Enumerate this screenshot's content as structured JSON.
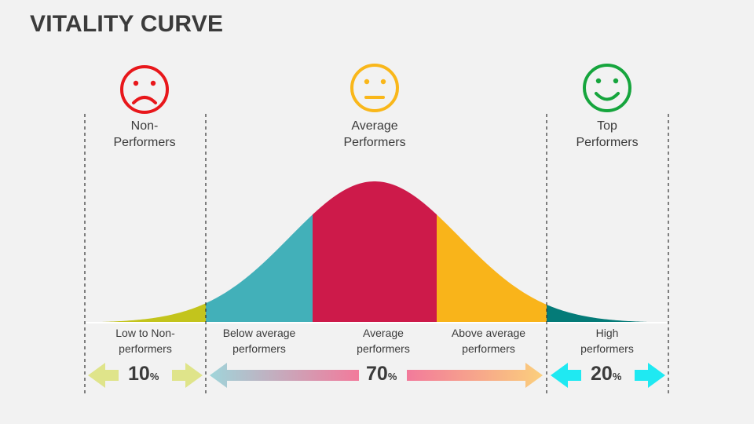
{
  "title": "VITALITY CURVE",
  "groups": [
    {
      "label": "Non-\nPerformers",
      "face": "sad-face-icon",
      "color": "#e8171b"
    },
    {
      "label": "Average\nPerformers",
      "face": "neutral-face-icon",
      "color": "#f9b71a"
    },
    {
      "label": "Top\nPerformers",
      "face": "happy-face-icon",
      "color": "#16a53d"
    }
  ],
  "segments": [
    {
      "label": "Low to Non-\nperformers",
      "color": "#c3c41c"
    },
    {
      "label": "Below average\nperformers",
      "color": "#42b0b9"
    },
    {
      "label": "Average\nperformers",
      "color": "#cd1a4a"
    },
    {
      "label": "Above average\nperformers",
      "color": "#f9b41a"
    },
    {
      "label": "High\nperformers",
      "color": "#047b78"
    }
  ],
  "percentages": [
    {
      "value": "10",
      "unit": "%",
      "arrow_color": "#dfe48a"
    },
    {
      "value": "70",
      "unit": "%",
      "arrow_left_gradient": [
        "#9fd5da",
        "#f27a9b"
      ],
      "arrow_right_gradient": [
        "#f27a9b",
        "#fbcf7c"
      ]
    },
    {
      "value": "20",
      "unit": "%",
      "arrow_color": "#1fe9f2"
    }
  ]
}
